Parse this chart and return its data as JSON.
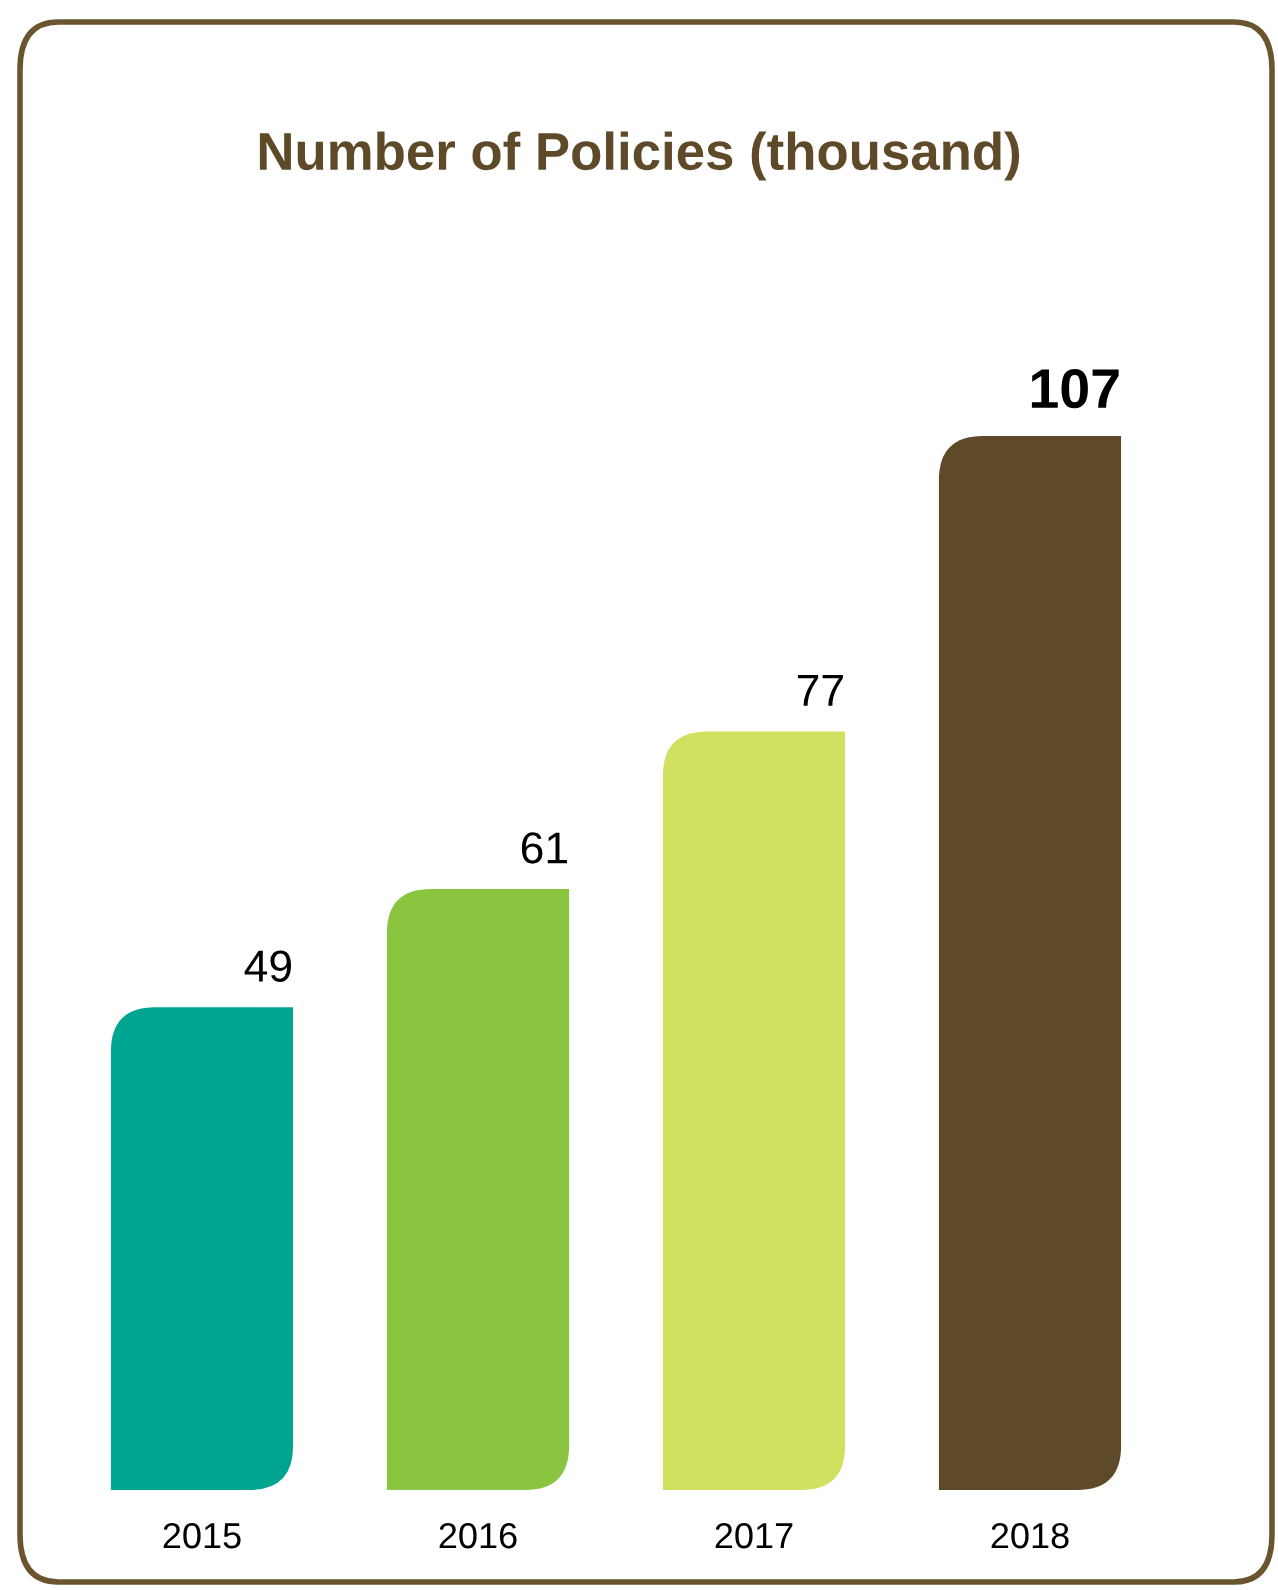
{
  "chart_data": {
    "type": "bar",
    "title": "Number of Policies (thousand)",
    "categories": [
      "2015",
      "2016",
      "2017",
      "2018"
    ],
    "values": [
      49,
      61,
      77,
      107
    ],
    "colors": [
      "#00a591",
      "#8bc540",
      "#d2e062",
      "#5e4a28"
    ],
    "data_labels": true,
    "grid": false,
    "legend": false
  }
}
